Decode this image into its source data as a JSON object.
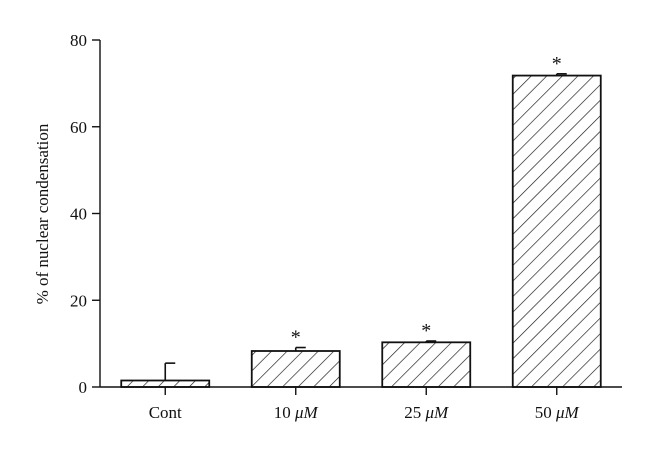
{
  "chart_data": {
    "type": "bar",
    "ylabel": "% of nuclear condensation",
    "ylim": [
      0,
      80
    ],
    "yticks": [
      0,
      20,
      40,
      60,
      80
    ],
    "grid": false,
    "bar_fill": "hatched",
    "colors": {
      "stroke": "#111111",
      "fill": "#ffffff"
    },
    "categories": [
      {
        "prefix": "Cont",
        "unit": ""
      },
      {
        "prefix": "10 ",
        "unit": "μM"
      },
      {
        "prefix": "25 ",
        "unit": "μM"
      },
      {
        "prefix": "50 ",
        "unit": "μM"
      }
    ],
    "values": [
      1.5,
      8.3,
      10.3,
      71.8
    ],
    "error_upper": [
      4.0,
      0.8,
      0.3,
      0.4
    ],
    "significance": [
      "",
      "*",
      "*",
      "*"
    ]
  }
}
